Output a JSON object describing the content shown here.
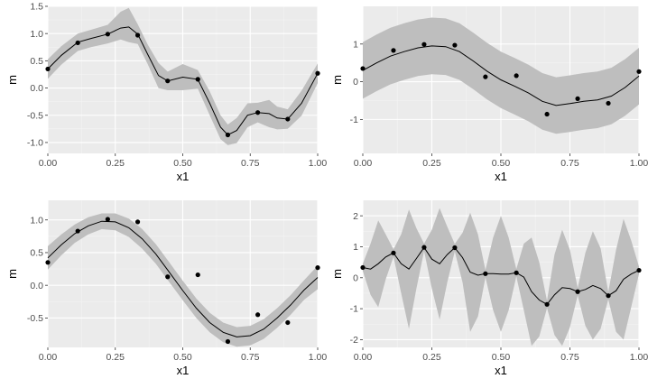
{
  "colors": {
    "panel_background": "#EBEBEB",
    "grid_major": "#FFFFFF",
    "grid_minor": "#F4F4F4",
    "ribbon": "#BEBEBE",
    "line": "#000000",
    "points": "#000000",
    "tick_text": "#4D4D4D"
  },
  "chart_data": [
    {
      "type": "line",
      "xlabel": "x1",
      "ylabel": "m",
      "xlim": [
        0,
        1
      ],
      "ylim": [
        -1.2,
        1.5
      ],
      "xticks": [
        0,
        0.25,
        0.5,
        0.75,
        1
      ],
      "xtick_labels": [
        "0.00",
        "0.25",
        "0.50",
        "0.75",
        "1.00"
      ],
      "yticks": [
        -1,
        -0.5,
        0,
        0.5,
        1,
        1.5
      ],
      "ytick_labels": [
        "-1.0",
        "-0.5",
        "0.0",
        "0.5",
        "1.0",
        "1.5"
      ],
      "grid": true,
      "points": {
        "x": [
          0,
          0.111,
          0.222,
          0.333,
          0.444,
          0.556,
          0.667,
          0.778,
          0.889,
          1
        ],
        "y": [
          0.35,
          0.83,
          0.99,
          0.97,
          0.13,
          0.16,
          -0.86,
          -0.45,
          -0.57,
          0.27
        ]
      },
      "fit": {
        "x": [
          0,
          0.05,
          0.111,
          0.16,
          0.222,
          0.27,
          0.3,
          0.333,
          0.37,
          0.41,
          0.444,
          0.5,
          0.556,
          0.6,
          0.64,
          0.667,
          0.7,
          0.74,
          0.778,
          0.82,
          0.85,
          0.889,
          0.94,
          1
        ],
        "y": [
          0.35,
          0.6,
          0.84,
          0.91,
          0.99,
          1.1,
          1.12,
          0.99,
          0.62,
          0.23,
          0.13,
          0.2,
          0.16,
          -0.28,
          -0.72,
          -0.86,
          -0.78,
          -0.5,
          -0.45,
          -0.47,
          -0.55,
          -0.57,
          -0.28,
          0.27
        ]
      },
      "band": {
        "upper": [
          0.53,
          0.77,
          1.0,
          1.07,
          1.16,
          1.4,
          1.47,
          1.17,
          0.8,
          0.46,
          0.3,
          0.44,
          0.33,
          -0.06,
          -0.5,
          -0.67,
          -0.55,
          -0.28,
          -0.27,
          -0.22,
          -0.34,
          -0.39,
          -0.05,
          0.45
        ],
        "lower": [
          0.17,
          0.43,
          0.68,
          0.75,
          0.82,
          0.89,
          0.84,
          0.81,
          0.44,
          0.0,
          -0.04,
          -0.04,
          -0.01,
          -0.5,
          -0.94,
          -1.05,
          -1.01,
          -0.72,
          -0.63,
          -0.72,
          -0.76,
          -0.75,
          -0.51,
          0.09
        ]
      }
    },
    {
      "type": "line",
      "xlabel": "x1",
      "ylabel": "m",
      "xlim": [
        0,
        1
      ],
      "ylim": [
        -1.9,
        2.0
      ],
      "xticks": [
        0,
        0.25,
        0.5,
        0.75,
        1
      ],
      "xtick_labels": [
        "0.00",
        "0.25",
        "0.50",
        "0.75",
        "1.00"
      ],
      "yticks": [
        -1,
        0,
        1
      ],
      "ytick_labels": [
        "-1",
        "0",
        "1"
      ],
      "grid": true,
      "points": {
        "x": [
          0,
          0.111,
          0.222,
          0.333,
          0.444,
          0.556,
          0.667,
          0.778,
          0.889,
          1
        ],
        "y": [
          0.35,
          0.83,
          0.99,
          0.97,
          0.13,
          0.16,
          -0.86,
          -0.45,
          -0.57,
          0.27
        ]
      },
      "fit": {
        "x": [
          0,
          0.05,
          0.1,
          0.15,
          0.2,
          0.25,
          0.3,
          0.35,
          0.4,
          0.45,
          0.5,
          0.55,
          0.6,
          0.65,
          0.7,
          0.75,
          0.8,
          0.85,
          0.9,
          0.95,
          1
        ],
        "y": [
          0.3,
          0.5,
          0.68,
          0.8,
          0.9,
          0.95,
          0.93,
          0.8,
          0.55,
          0.28,
          0.05,
          -0.12,
          -0.3,
          -0.52,
          -0.63,
          -0.58,
          -0.52,
          -0.48,
          -0.38,
          -0.15,
          0.15
        ]
      },
      "band": {
        "upper": [
          1.05,
          1.25,
          1.43,
          1.55,
          1.65,
          1.7,
          1.68,
          1.55,
          1.3,
          1.03,
          0.8,
          0.63,
          0.45,
          0.23,
          0.12,
          0.17,
          0.23,
          0.27,
          0.37,
          0.6,
          0.9
        ],
        "lower": [
          -0.45,
          -0.25,
          -0.07,
          0.05,
          0.15,
          0.2,
          0.18,
          0.05,
          -0.2,
          -0.47,
          -0.7,
          -0.87,
          -1.05,
          -1.27,
          -1.38,
          -1.33,
          -1.27,
          -1.23,
          -1.13,
          -0.9,
          -0.6
        ]
      }
    },
    {
      "type": "line",
      "xlabel": "x1",
      "ylabel": "m",
      "xlim": [
        0,
        1
      ],
      "ylim": [
        -0.95,
        1.3
      ],
      "xticks": [
        0,
        0.25,
        0.5,
        0.75,
        1
      ],
      "xtick_labels": [
        "0.00",
        "0.25",
        "0.50",
        "0.75",
        "1.00"
      ],
      "yticks": [
        -0.5,
        0,
        0.5,
        1
      ],
      "ytick_labels": [
        "-0.5",
        "0.0",
        "0.5",
        "1.0"
      ],
      "grid": true,
      "points": {
        "x": [
          0,
          0.111,
          0.222,
          0.333,
          0.444,
          0.556,
          0.667,
          0.778,
          0.889,
          1
        ],
        "y": [
          0.35,
          0.83,
          1.01,
          0.97,
          0.13,
          0.16,
          -0.86,
          -0.45,
          -0.57,
          0.27
        ]
      },
      "fit": {
        "x": [
          0,
          0.05,
          0.1,
          0.15,
          0.2,
          0.25,
          0.3,
          0.35,
          0.4,
          0.45,
          0.5,
          0.55,
          0.6,
          0.65,
          0.7,
          0.75,
          0.8,
          0.85,
          0.9,
          0.95,
          1
        ],
        "y": [
          0.42,
          0.62,
          0.79,
          0.91,
          0.98,
          0.97,
          0.88,
          0.71,
          0.48,
          0.2,
          -0.08,
          -0.35,
          -0.57,
          -0.72,
          -0.79,
          -0.77,
          -0.67,
          -0.5,
          -0.3,
          -0.07,
          0.12
        ]
      },
      "band": {
        "upper": [
          0.6,
          0.78,
          0.93,
          1.04,
          1.1,
          1.1,
          1.02,
          0.86,
          0.63,
          0.35,
          0.07,
          -0.2,
          -0.42,
          -0.57,
          -0.64,
          -0.62,
          -0.52,
          -0.35,
          -0.15,
          0.08,
          0.3
        ],
        "lower": [
          0.24,
          0.46,
          0.65,
          0.78,
          0.86,
          0.84,
          0.74,
          0.56,
          0.33,
          0.05,
          -0.23,
          -0.5,
          -0.72,
          -0.87,
          -0.94,
          -0.92,
          -0.82,
          -0.65,
          -0.45,
          -0.22,
          -0.06
        ]
      }
    },
    {
      "type": "line",
      "xlabel": "x1",
      "ylabel": "m",
      "xlim": [
        0,
        1
      ],
      "ylim": [
        -2.25,
        2.5
      ],
      "xticks": [
        0,
        0.25,
        0.5,
        0.75,
        1
      ],
      "xtick_labels": [
        "0.00",
        "0.25",
        "0.50",
        "0.75",
        "1.00"
      ],
      "yticks": [
        -2,
        -1,
        0,
        1,
        2
      ],
      "ytick_labels": [
        "-2",
        "-1",
        "0",
        "1",
        "2"
      ],
      "grid": true,
      "points": {
        "x": [
          0,
          0.111,
          0.222,
          0.333,
          0.444,
          0.556,
          0.667,
          0.778,
          0.889,
          1
        ],
        "y": [
          0.33,
          0.8,
          0.98,
          0.97,
          0.13,
          0.16,
          -0.86,
          -0.45,
          -0.58,
          0.24
        ]
      },
      "fit": {
        "x": [
          0,
          0.028,
          0.056,
          0.083,
          0.111,
          0.139,
          0.167,
          0.194,
          0.222,
          0.25,
          0.278,
          0.306,
          0.333,
          0.361,
          0.389,
          0.417,
          0.444,
          0.472,
          0.5,
          0.528,
          0.556,
          0.583,
          0.611,
          0.639,
          0.667,
          0.694,
          0.722,
          0.75,
          0.778,
          0.806,
          0.833,
          0.861,
          0.889,
          0.917,
          0.944,
          0.972,
          1
        ],
        "y": [
          0.33,
          0.28,
          0.45,
          0.67,
          0.8,
          0.45,
          0.28,
          0.62,
          0.98,
          0.6,
          0.45,
          0.75,
          0.97,
          0.65,
          0.18,
          0.08,
          0.13,
          0.13,
          0.12,
          0.12,
          0.16,
          0.02,
          -0.45,
          -0.72,
          -0.86,
          -0.55,
          -0.32,
          -0.35,
          -0.45,
          -0.38,
          -0.25,
          -0.35,
          -0.58,
          -0.42,
          -0.05,
          0.12,
          0.24
        ]
      },
      "band": {
        "upper": [
          0.45,
          1.1,
          1.85,
          1.4,
          0.92,
          1.4,
          2.2,
          1.6,
          1.1,
          1.55,
          2.25,
          1.65,
          1.09,
          1.45,
          2.1,
          1.4,
          0.25,
          1.3,
          2.0,
          1.3,
          0.28,
          1.1,
          1.3,
          0.5,
          -0.74,
          0.75,
          1.55,
          0.9,
          -0.33,
          0.8,
          1.5,
          0.95,
          -0.46,
          0.9,
          1.9,
          1.2,
          0.36
        ],
        "lower": [
          0.21,
          -0.55,
          -0.95,
          -0.05,
          0.68,
          -0.5,
          -1.65,
          -0.35,
          0.86,
          -0.35,
          -1.35,
          -0.15,
          0.85,
          -0.15,
          -1.75,
          -1.25,
          0.01,
          -1.05,
          -1.75,
          -1.05,
          0.04,
          -1.05,
          -2.2,
          -1.9,
          -0.98,
          -1.85,
          -2.2,
          -1.6,
          -0.57,
          -1.55,
          -2.0,
          -1.65,
          -0.7,
          -1.75,
          -2.0,
          -0.95,
          0.12
        ]
      }
    }
  ]
}
